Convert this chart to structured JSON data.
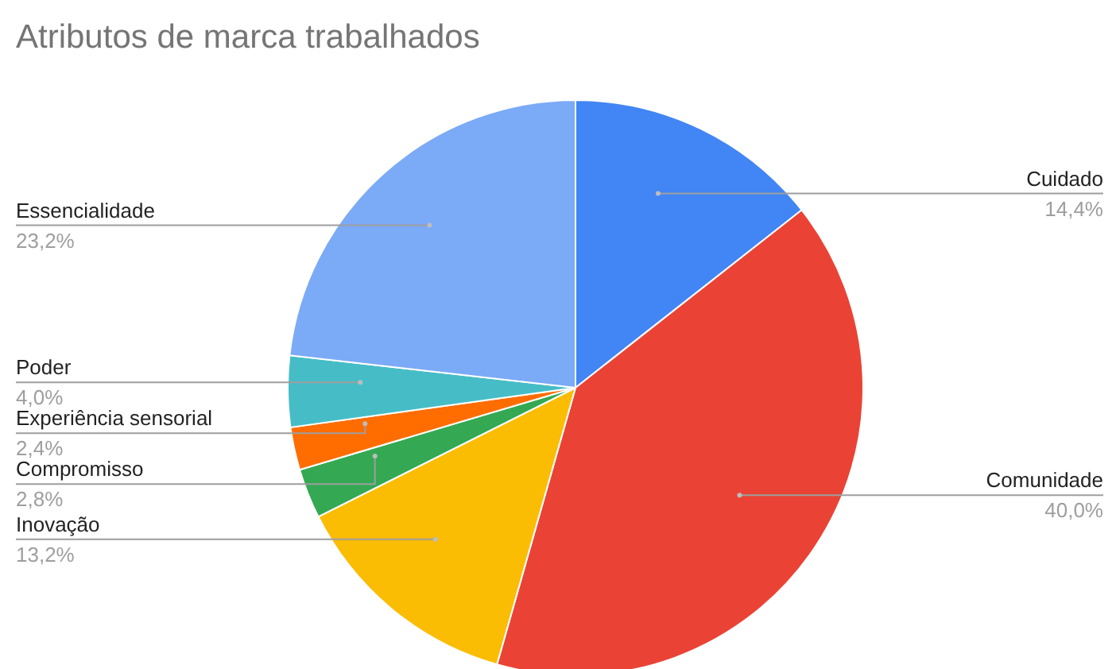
{
  "chart_data": {
    "type": "pie",
    "title": "Atributos de marca trabalhados",
    "categories": [
      "Cuidado",
      "Comunidade",
      "Inovação",
      "Compromisso",
      "Experiência sensorial",
      "Poder",
      "Essencialidade"
    ],
    "values": [
      14.4,
      40.0,
      13.2,
      2.8,
      2.4,
      4.0,
      23.2
    ],
    "value_labels": [
      "14,4%",
      "40,0%",
      "13,2%",
      "2,8%",
      "2,4%",
      "4,0%",
      "23,2%"
    ],
    "colors": [
      "#4285f4",
      "#ea4335",
      "#fbbc04",
      "#34a853",
      "#ff6d01",
      "#46bdc6",
      "#7baaf7"
    ],
    "legend": false
  }
}
